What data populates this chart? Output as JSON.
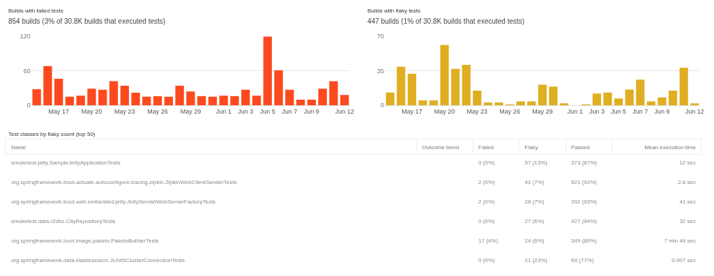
{
  "chart_data": [
    {
      "type": "bar",
      "title": "Builds with failed tests",
      "subtitle": "854 builds (3% of 30.8K builds that executed tests)",
      "categories": [
        null,
        null,
        "May 17",
        null,
        null,
        "May 20",
        null,
        null,
        "May 23",
        null,
        null,
        "May 26",
        null,
        null,
        "May 29",
        null,
        null,
        "Jun 1",
        null,
        "Jun 3",
        null,
        "Jun 5",
        null,
        "Jun 7",
        null,
        "Jun 9",
        null,
        null,
        "Jun 12"
      ],
      "series": [
        {
          "color": "#fc4a1e",
          "values": [
            28,
            68,
            46,
            15,
            17,
            29,
            27,
            42,
            34,
            22,
            15,
            16,
            15,
            34,
            24,
            16,
            15,
            17,
            16,
            27,
            17,
            119,
            61,
            27,
            10,
            10,
            29,
            42,
            18
          ]
        }
      ],
      "ylim": [
        0,
        120
      ],
      "yticks": [
        0,
        60,
        120
      ],
      "grid": "y"
    },
    {
      "type": "bar",
      "title": "Builds with flaky tests",
      "subtitle": "447 builds (1% of 30.8K builds that executed tests)",
      "categories": [
        null,
        null,
        "May 17",
        null,
        null,
        "May 20",
        null,
        null,
        "May 23",
        null,
        null,
        "May 26",
        null,
        null,
        "May 29",
        null,
        null,
        "Jun 1",
        null,
        "Jun 3",
        null,
        "Jun 5",
        null,
        "Jun 7",
        null,
        "Jun 9",
        null,
        null,
        "Jun 12"
      ],
      "series": [
        {
          "color": "#e0ae22",
          "values": [
            13,
            39,
            32,
            5,
            5,
            61,
            37,
            41,
            15,
            3,
            3,
            1,
            4,
            4,
            21,
            19,
            2,
            0,
            1,
            12,
            13,
            7,
            16,
            26,
            4,
            8,
            15,
            38,
            2
          ]
        }
      ],
      "ylim": [
        0,
        70
      ],
      "yticks": [
        0,
        35,
        70
      ],
      "grid": "y"
    },
    {
      "type": "other",
      "title": "Test classes by flaky count (top 50)",
      "categories": [
        "Name",
        "Outcome trend",
        "Failed",
        "Flaky",
        "Passed",
        "Mean execution time"
      ],
      "cell_labels": [
        [
          "smoketest.jetty.SampleJettyApplicationTests",
          null,
          "0 (0%)",
          "57 (13%)",
          "373 (87%)",
          "12 sec"
        ],
        [
          "org.springframework.boot.actuate.autoconfigure.tracing.zipkin.ZipkinWebClientSenderTests",
          null,
          "2 (0%)",
          "42 (7%)",
          "521 (92%)",
          "2.8 sec"
        ],
        [
          "org.springframework.boot.web.embedded.jetty.JettyServletWebServerFactoryTests",
          null,
          "2 (0%)",
          "28 (7%)",
          "392 (93%)",
          "41 sec"
        ],
        [
          "smoketest.data.r2dbc.CityRepositoryTests",
          null,
          "0 (0%)",
          "27 (6%)",
          "427 (94%)",
          "32 sec"
        ],
        [
          "org.springframework.boot.image.paketo.PaketoBuilderTests",
          null,
          "17 (4%)",
          "24 (6%)",
          "349 (89%)",
          "7 min 44 sec"
        ],
        [
          "org.springframework.data.elasticsearch.JUnit5ClusterConnectionTests",
          null,
          "0 (0%)",
          "21 (23%)",
          "69 (77%)",
          "0.007 sec"
        ]
      ]
    }
  ]
}
